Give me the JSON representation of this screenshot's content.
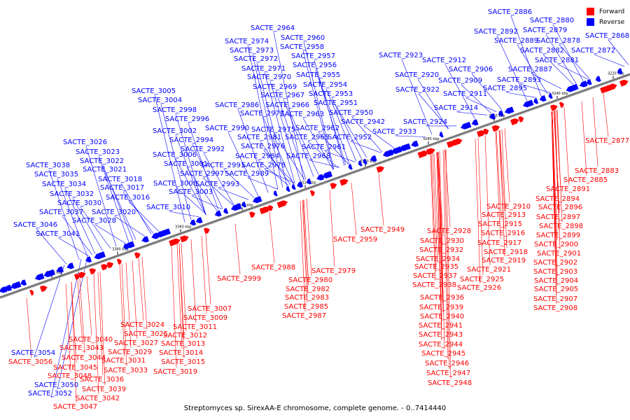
{
  "caption": "Streptomyces sp. SirexAA-E chromosome, complete genome. - 0..7414440",
  "legend": {
    "forward": {
      "label": "Forward",
      "color": "#ff0000"
    },
    "reverse": {
      "label": "Reverse",
      "color": "#0000ff"
    }
  },
  "colors": {
    "forward": "#ff0000",
    "reverse": "#0000ff",
    "axis": "#777777",
    "ticks": "#000000"
  },
  "ticks": [
    "3220 kbp",
    "3240 kbp",
    "3260 kbp",
    "3280 kbp",
    "3300 kbp",
    "3320 kbp",
    "3340 kbp",
    "3360 kbp",
    "3380 kbp",
    "3400 kbp"
  ],
  "reverse_labels": [
    {
      "text": "SACTE_2886"
    },
    {
      "text": "SACTE_2880"
    },
    {
      "text": "SACTE_2892"
    },
    {
      "text": "SACTE_2879"
    },
    {
      "text": "SACTE_2889"
    },
    {
      "text": "SACTE_2878"
    },
    {
      "text": "SACTE_2868"
    },
    {
      "text": "SACTE_2882"
    },
    {
      "text": "SACTE_2872"
    },
    {
      "text": "SACTE_2881"
    },
    {
      "text": "SACTE_2887"
    },
    {
      "text": "SACTE_2893"
    },
    {
      "text": "SACTE_2895"
    },
    {
      "text": "SACTE_2923"
    },
    {
      "text": "SACTE_2912"
    },
    {
      "text": "SACTE_2906"
    },
    {
      "text": "SACTE_2920"
    },
    {
      "text": "SACTE_2909"
    },
    {
      "text": "SACTE_2922"
    },
    {
      "text": "SACTE_2911"
    },
    {
      "text": "SACTE_2914"
    },
    {
      "text": "SACTE_2924"
    },
    {
      "text": "SACTE_2933"
    },
    {
      "text": "SACTE_2964"
    },
    {
      "text": "SACTE_2960"
    },
    {
      "text": "SACTE_2974"
    },
    {
      "text": "SACTE_2958"
    },
    {
      "text": "SACTE_2973"
    },
    {
      "text": "SACTE_2957"
    },
    {
      "text": "SACTE_2972"
    },
    {
      "text": "SACTE_2956"
    },
    {
      "text": "SACTE_2971"
    },
    {
      "text": "SACTE_2955"
    },
    {
      "text": "SACTE_2970"
    },
    {
      "text": "SACTE_2954"
    },
    {
      "text": "SACTE_2969"
    },
    {
      "text": "SACTE_2953"
    },
    {
      "text": "SACTE_2967"
    },
    {
      "text": "SACTE_2951"
    },
    {
      "text": "SACTE_2986"
    },
    {
      "text": "SACTE_2966"
    },
    {
      "text": "SACTE_2950"
    },
    {
      "text": "SACTE_2977"
    },
    {
      "text": "SACTE_2963"
    },
    {
      "text": "SACTE_2942"
    },
    {
      "text": "SACTE_2990"
    },
    {
      "text": "SACTE_2975"
    },
    {
      "text": "SACTE_2962"
    },
    {
      "text": "SACTE_2981"
    },
    {
      "text": "SACTE_2965"
    },
    {
      "text": "SACTE_2952"
    },
    {
      "text": "SACTE_2976"
    },
    {
      "text": "SACTE_2961"
    },
    {
      "text": "SACTE_2984"
    },
    {
      "text": "SACTE_2968"
    },
    {
      "text": "SACTE_2978"
    },
    {
      "text": "SACTE_2989"
    },
    {
      "text": "SACTE_3005"
    },
    {
      "text": "SACTE_3004"
    },
    {
      "text": "SACTE_2998"
    },
    {
      "text": "SACTE_2996"
    },
    {
      "text": "SACTE_3002"
    },
    {
      "text": "SACTE_2994"
    },
    {
      "text": "SACTE_2992"
    },
    {
      "text": "SACTE_3006"
    },
    {
      "text": "SACTE_2991"
    },
    {
      "text": "SACTE_3001"
    },
    {
      "text": "SACTE_2997"
    },
    {
      "text": "SACTE_2993"
    },
    {
      "text": "SACTE_3008"
    },
    {
      "text": "SACTE_3003"
    },
    {
      "text": "SACTE_3010"
    },
    {
      "text": "SACTE_3026"
    },
    {
      "text": "SACTE_3023"
    },
    {
      "text": "SACTE_3022"
    },
    {
      "text": "SACTE_3038"
    },
    {
      "text": "SACTE_3021"
    },
    {
      "text": "SACTE_3035"
    },
    {
      "text": "SACTE_3018"
    },
    {
      "text": "SACTE_3034"
    },
    {
      "text": "SACTE_3017"
    },
    {
      "text": "SACTE_3032"
    },
    {
      "text": "SACTE_3016"
    },
    {
      "text": "SACTE_3030"
    },
    {
      "text": "SACTE_3037"
    },
    {
      "text": "SACTE_3020"
    },
    {
      "text": "SACTE_3028"
    },
    {
      "text": "SACTE_3046"
    },
    {
      "text": "SACTE_3041"
    },
    {
      "text": "SACTE_3054"
    },
    {
      "text": "SACTE_3050"
    },
    {
      "text": "SACTE_3052"
    }
  ],
  "forward_labels": [
    {
      "text": "SACTE_2877"
    },
    {
      "text": "SACTE_2883"
    },
    {
      "text": "SACTE_2885"
    },
    {
      "text": "SACTE_2891"
    },
    {
      "text": "SACTE_2894"
    },
    {
      "text": "SACTE_2896"
    },
    {
      "text": "SACTE_2910"
    },
    {
      "text": "SACTE_2897"
    },
    {
      "text": "SACTE_2913"
    },
    {
      "text": "SACTE_2898"
    },
    {
      "text": "SACTE_2915"
    },
    {
      "text": "SACTE_2899"
    },
    {
      "text": "SACTE_2916"
    },
    {
      "text": "SACTE_2900"
    },
    {
      "text": "SACTE_2917"
    },
    {
      "text": "SACTE_2901"
    },
    {
      "text": "SACTE_2918"
    },
    {
      "text": "SACTE_2902"
    },
    {
      "text": "SACTE_2919"
    },
    {
      "text": "SACTE_2903"
    },
    {
      "text": "SACTE_2921"
    },
    {
      "text": "SACTE_2904"
    },
    {
      "text": "SACTE_2925"
    },
    {
      "text": "SACTE_2905"
    },
    {
      "text": "SACTE_2926"
    },
    {
      "text": "SACTE_2907"
    },
    {
      "text": "SACTE_2908"
    },
    {
      "text": "SACTE_2928"
    },
    {
      "text": "SACTE_2930"
    },
    {
      "text": "SACTE_2932"
    },
    {
      "text": "SACTE_2934"
    },
    {
      "text": "SACTE_2935"
    },
    {
      "text": "SACTE_2937"
    },
    {
      "text": "SACTE_2938"
    },
    {
      "text": "SACTE_2936"
    },
    {
      "text": "SACTE_2939"
    },
    {
      "text": "SACTE_2940"
    },
    {
      "text": "SACTE_2941"
    },
    {
      "text": "SACTE_2943"
    },
    {
      "text": "SACTE_2944"
    },
    {
      "text": "SACTE_2945"
    },
    {
      "text": "SACTE_2946"
    },
    {
      "text": "SACTE_2947"
    },
    {
      "text": "SACTE_2948"
    },
    {
      "text": "SACTE_2949"
    },
    {
      "text": "SACTE_2959"
    },
    {
      "text": "SACTE_2988"
    },
    {
      "text": "SACTE_2979"
    },
    {
      "text": "SACTE_2980"
    },
    {
      "text": "SACTE_2982"
    },
    {
      "text": "SACTE_2983"
    },
    {
      "text": "SACTE_2985"
    },
    {
      "text": "SACTE_2987"
    },
    {
      "text": "SACTE_2999"
    },
    {
      "text": "SACTE_3007"
    },
    {
      "text": "SACTE_3009"
    },
    {
      "text": "SACTE_3024"
    },
    {
      "text": "SACTE_3011"
    },
    {
      "text": "SACTE_3025"
    },
    {
      "text": "SACTE_3012"
    },
    {
      "text": "SACTE_3040"
    },
    {
      "text": "SACTE_3027"
    },
    {
      "text": "SACTE_3013"
    },
    {
      "text": "SACTE_3043"
    },
    {
      "text": "SACTE_3029"
    },
    {
      "text": "SACTE_3014"
    },
    {
      "text": "SACTE_3044"
    },
    {
      "text": "SACTE_3031"
    },
    {
      "text": "SACTE_3015"
    },
    {
      "text": "SACTE_3056"
    },
    {
      "text": "SACTE_3045"
    },
    {
      "text": "SACTE_3033"
    },
    {
      "text": "SACTE_3019"
    },
    {
      "text": "SACTE_3048"
    },
    {
      "text": "SACTE_3036"
    },
    {
      "text": "SACTE_3039"
    },
    {
      "text": "SACTE_3042"
    },
    {
      "text": "SACTE_3047"
    }
  ]
}
